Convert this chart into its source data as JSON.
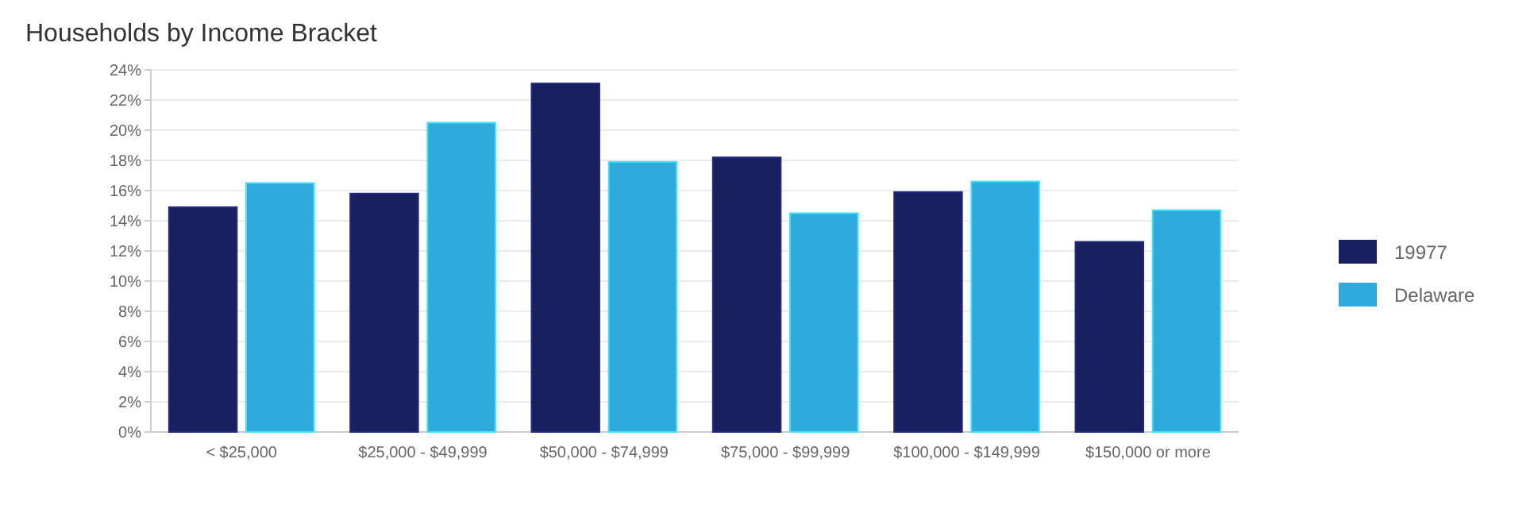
{
  "chart_data": {
    "type": "bar",
    "title": "Households by Income Bracket",
    "categories": [
      "< $25,000",
      "$25,000 - $49,999",
      "$50,000 - $74,999",
      "$75,000 - $99,999",
      "$100,000 - $149,999",
      "$150,000 or more"
    ],
    "series": [
      {
        "name": "19977",
        "color": "#182060",
        "values": [
          14.9,
          15.8,
          23.1,
          18.2,
          15.9,
          12.6
        ]
      },
      {
        "name": "Delaware",
        "color": "#2eaadc",
        "values": [
          16.5,
          20.5,
          17.9,
          14.5,
          16.6,
          14.7
        ]
      }
    ],
    "ylim": [
      0,
      24
    ],
    "yticks": [
      {
        "value": 0,
        "label": "0%"
      },
      {
        "value": 2,
        "label": "2%"
      },
      {
        "value": 4,
        "label": "4%"
      },
      {
        "value": 6,
        "label": "6%"
      },
      {
        "value": 8,
        "label": "8%"
      },
      {
        "value": 10,
        "label": "10%"
      },
      {
        "value": 12,
        "label": "12%"
      },
      {
        "value": 14,
        "label": "14%"
      },
      {
        "value": 16,
        "label": "16%"
      },
      {
        "value": 18,
        "label": "18%"
      },
      {
        "value": 20,
        "label": "20%"
      },
      {
        "value": 22,
        "label": "22%"
      },
      {
        "value": 24,
        "label": "24%"
      }
    ],
    "grid": "y",
    "legend": "right"
  }
}
